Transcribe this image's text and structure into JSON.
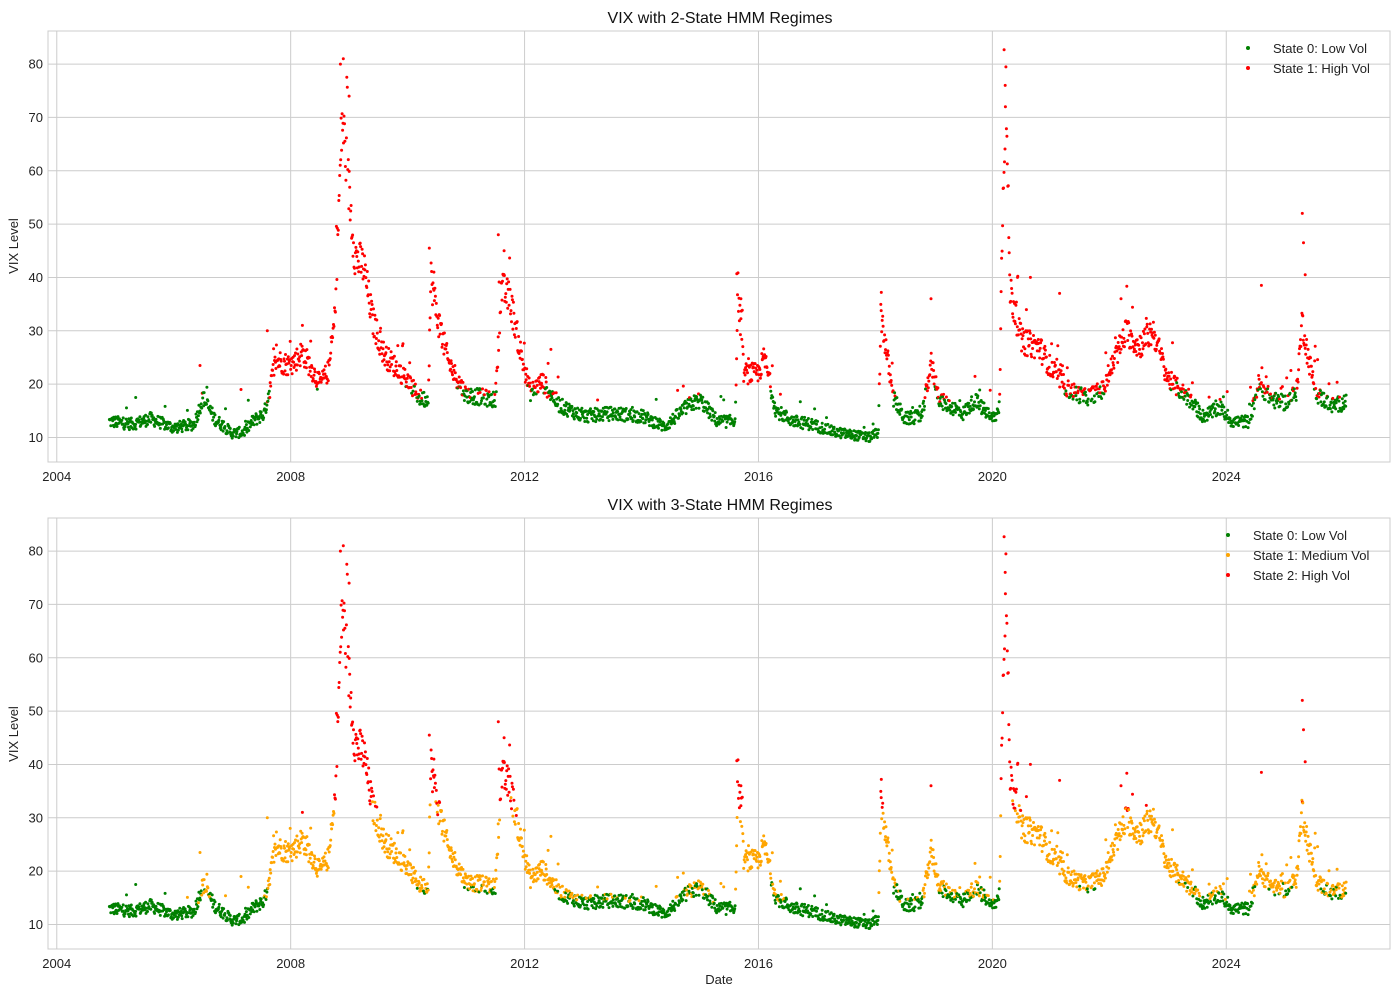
{
  "chart_data": [
    {
      "type": "scatter",
      "title": "VIX with 2-State HMM Regimes",
      "xlabel": "",
      "ylabel": "VIX Level",
      "x_ticks": [
        "2004",
        "2008",
        "2012",
        "2016",
        "2020",
        "2024"
      ],
      "y_ticks": [
        10,
        20,
        30,
        40,
        50,
        60,
        70,
        80
      ],
      "xlim": [
        2003.85,
        2026.8
      ],
      "ylim": [
        5.4,
        86.2
      ],
      "grid": true,
      "legend_position": "top-right",
      "legend": [
        {
          "label": "State 0: Low Vol",
          "color": "#008000"
        },
        {
          "label": "State 1: High Vol",
          "color": "#ff0000"
        }
      ],
      "regime_thresholds": [
        18.5
      ],
      "series": [
        {
          "name": "State 0: Low Vol",
          "color": "#008000"
        },
        {
          "name": "State 1: High Vol",
          "color": "#ff0000"
        }
      ]
    },
    {
      "type": "scatter",
      "title": "VIX with 3-State HMM Regimes",
      "xlabel": "Date",
      "ylabel": "VIX Level",
      "x_ticks": [
        "2004",
        "2008",
        "2012",
        "2016",
        "2020",
        "2024"
      ],
      "y_ticks": [
        10,
        20,
        30,
        40,
        50,
        60,
        70,
        80
      ],
      "xlim": [
        2003.85,
        2026.8
      ],
      "ylim": [
        5.4,
        86.2
      ],
      "grid": true,
      "legend_position": "top-right",
      "legend": [
        {
          "label": "State 0: Low Vol",
          "color": "#008000"
        },
        {
          "label": "State 1: Medium Vol",
          "color": "#ffa500"
        },
        {
          "label": "State 2: High Vol",
          "color": "#ff0000"
        }
      ],
      "regime_thresholds": [
        16.0,
        32.0
      ],
      "series": [
        {
          "name": "State 0: Low Vol",
          "color": "#008000"
        },
        {
          "name": "State 1: Medium Vol",
          "color": "#ffa500"
        },
        {
          "name": "State 2: High Vol",
          "color": "#ff0000"
        }
      ]
    }
  ],
  "vix_path": {
    "x_start": 2004.9,
    "x_end": 2026.05,
    "anchors": [
      [
        2004.9,
        13.0
      ],
      [
        2005.3,
        12.5
      ],
      [
        2005.6,
        13.5
      ],
      [
        2006.0,
        11.8
      ],
      [
        2006.35,
        12.5
      ],
      [
        2006.5,
        17.5
      ],
      [
        2006.7,
        13.5
      ],
      [
        2007.0,
        10.8
      ],
      [
        2007.2,
        11.0
      ],
      [
        2007.35,
        13.0
      ],
      [
        2007.55,
        14.5
      ],
      [
        2007.75,
        24.5
      ],
      [
        2008.0,
        23.5
      ],
      [
        2008.2,
        26.0
      ],
      [
        2008.5,
        20.0
      ],
      [
        2008.65,
        22.5
      ],
      [
        2008.75,
        32.0
      ],
      [
        2008.83,
        55.0
      ],
      [
        2008.88,
        70.0
      ],
      [
        2008.95,
        62.0
      ],
      [
        2009.1,
        44.0
      ],
      [
        2009.25,
        42.0
      ],
      [
        2009.4,
        32.0
      ],
      [
        2009.6,
        25.5
      ],
      [
        2009.9,
        22.0
      ],
      [
        2010.2,
        17.5
      ],
      [
        2010.35,
        17.0
      ],
      [
        2010.4,
        40.0
      ],
      [
        2010.5,
        33.0
      ],
      [
        2010.7,
        24.0
      ],
      [
        2011.0,
        18.0
      ],
      [
        2011.3,
        17.5
      ],
      [
        2011.5,
        17.0
      ],
      [
        2011.6,
        38.0
      ],
      [
        2011.75,
        36.0
      ],
      [
        2011.95,
        25.0
      ],
      [
        2012.1,
        18.5
      ],
      [
        2012.3,
        20.5
      ],
      [
        2012.6,
        16.0
      ],
      [
        2013.0,
        14.0
      ],
      [
        2013.5,
        14.5
      ],
      [
        2014.0,
        14.0
      ],
      [
        2014.4,
        12.0
      ],
      [
        2014.8,
        16.0
      ],
      [
        2015.0,
        17.0
      ],
      [
        2015.3,
        13.0
      ],
      [
        2015.6,
        13.0
      ],
      [
        2015.65,
        38.0
      ],
      [
        2015.75,
        22.0
      ],
      [
        2016.0,
        22.0
      ],
      [
        2016.1,
        25.0
      ],
      [
        2016.3,
        15.0
      ],
      [
        2016.6,
        13.0
      ],
      [
        2016.9,
        12.5
      ],
      [
        2017.3,
        11.0
      ],
      [
        2017.9,
        10.0
      ],
      [
        2018.05,
        11.0
      ],
      [
        2018.1,
        33.0
      ],
      [
        2018.3,
        17.5
      ],
      [
        2018.5,
        13.5
      ],
      [
        2018.8,
        14.0
      ],
      [
        2018.95,
        24.0
      ],
      [
        2019.1,
        17.0
      ],
      [
        2019.5,
        14.5
      ],
      [
        2019.7,
        17.0
      ],
      [
        2020.0,
        13.5
      ],
      [
        2020.12,
        15.0
      ],
      [
        2020.18,
        57.0
      ],
      [
        2020.23,
        75.0
      ],
      [
        2020.3,
        38.0
      ],
      [
        2020.5,
        28.0
      ],
      [
        2020.8,
        27.0
      ],
      [
        2021.0,
        23.0
      ],
      [
        2021.3,
        19.0
      ],
      [
        2021.6,
        17.5
      ],
      [
        2021.9,
        19.0
      ],
      [
        2022.1,
        25.0
      ],
      [
        2022.3,
        30.0
      ],
      [
        2022.5,
        27.0
      ],
      [
        2022.75,
        30.0
      ],
      [
        2023.0,
        21.0
      ],
      [
        2023.3,
        18.0
      ],
      [
        2023.6,
        14.0
      ],
      [
        2023.9,
        15.5
      ],
      [
        2024.1,
        13.0
      ],
      [
        2024.4,
        13.0
      ],
      [
        2024.55,
        20.0
      ],
      [
        2024.8,
        17.0
      ],
      [
        2025.0,
        16.5
      ],
      [
        2025.2,
        18.5
      ],
      [
        2025.3,
        32.0
      ],
      [
        2025.4,
        25.0
      ],
      [
        2025.55,
        18.0
      ],
      [
        2025.8,
        16.0
      ],
      [
        2026.05,
        16.5
      ]
    ],
    "spikes": [
      [
        2005.35,
        17.5
      ],
      [
        2006.45,
        23.5
      ],
      [
        2007.15,
        19.0
      ],
      [
        2007.6,
        30.0
      ],
      [
        2008.2,
        31.0
      ],
      [
        2008.85,
        80.0
      ],
      [
        2008.9,
        81.0
      ],
      [
        2009.0,
        74.0
      ],
      [
        2010.37,
        45.5
      ],
      [
        2010.45,
        41.0
      ],
      [
        2011.55,
        48.0
      ],
      [
        2011.65,
        45.0
      ],
      [
        2012.45,
        26.5
      ],
      [
        2015.63,
        40.7
      ],
      [
        2015.7,
        36.0
      ],
      [
        2018.1,
        37.2
      ],
      [
        2018.95,
        36.0
      ],
      [
        2020.2,
        82.7
      ],
      [
        2020.22,
        76.0
      ],
      [
        2020.43,
        40.0
      ],
      [
        2020.65,
        40.0
      ],
      [
        2021.15,
        37.0
      ],
      [
        2022.2,
        36.0
      ],
      [
        2024.6,
        38.5
      ],
      [
        2025.3,
        52.0
      ],
      [
        2025.32,
        46.5
      ],
      [
        2025.35,
        40.5
      ]
    ]
  }
}
